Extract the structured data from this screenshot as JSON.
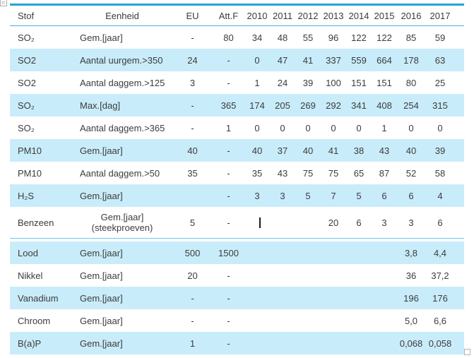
{
  "meta": {
    "background_color": "#ffffff",
    "accent_top_border_color": "#24a4d4",
    "header_underline_color": "#4aacdb",
    "row_shade_color": "#c9ecfa",
    "section_divider_color": "#6fc8ea",
    "text_color": "#3c3c3c"
  },
  "icons": {
    "move_handle": "table-move-handle-icon",
    "resize_handle": "table-resize-handle-icon",
    "text_cursor": "text-caret"
  },
  "table": {
    "columns": [
      "Stof",
      "Eenheid",
      "EU",
      "Att.F",
      "2010",
      "2011",
      "2012",
      "2013",
      "2014",
      "2015",
      "2016",
      "2017"
    ],
    "rows": [
      {
        "stof": "SO₂",
        "eenheid": "Gem.[jaar]",
        "eu": "-",
        "attf": "80",
        "values": [
          "34",
          "48",
          "55",
          "96",
          "122",
          "122",
          "85",
          "59"
        ],
        "shaded": false
      },
      {
        "stof": "SO2",
        "eenheid": "Aantal uurgem.>350",
        "eu": "24",
        "attf": "-",
        "values": [
          "0",
          "47",
          "41",
          "337",
          "559",
          "664",
          "178",
          "63"
        ],
        "shaded": true
      },
      {
        "stof": "SO2",
        "eenheid": "Aantal daggem.>125",
        "eu": "3",
        "attf": "-",
        "values": [
          "1",
          "24",
          "39",
          "100",
          "151",
          "151",
          "80",
          "25"
        ],
        "shaded": false
      },
      {
        "stof": "SO₂",
        "eenheid": "Max.[dag]",
        "eu": "-",
        "attf": "365",
        "values": [
          "174",
          "205",
          "269",
          "292",
          "341",
          "408",
          "254",
          "315"
        ],
        "shaded": true
      },
      {
        "stof": "SO₂",
        "eenheid": "Aantal daggem.>365",
        "eu": "-",
        "attf": "1",
        "values": [
          "0",
          "0",
          "0",
          "0",
          "0",
          "1",
          "0",
          "0"
        ],
        "shaded": false
      },
      {
        "stof": "PM10",
        "eenheid": "Gem.[jaar]",
        "eu": "40",
        "attf": "-",
        "values": [
          "40",
          "37",
          "40",
          "41",
          "38",
          "43",
          "40",
          "39"
        ],
        "shaded": true
      },
      {
        "stof": "PM10",
        "eenheid": "Aantal daggem.>50",
        "eu": "35",
        "attf": "-",
        "values": [
          "35",
          "43",
          "75",
          "75",
          "65",
          "87",
          "52",
          "58"
        ],
        "shaded": false
      },
      {
        "stof": "H₂S",
        "eenheid": "Gem.[jaar]",
        "eu": "",
        "attf": "-",
        "values": [
          "3",
          "3",
          "5",
          "7",
          "5",
          "6",
          "6",
          "4"
        ],
        "shaded": true
      },
      {
        "stof": "Benzeen",
        "eenheid": "Gem.[jaar]",
        "eenheid2": "(steekproeven)",
        "eu": "5",
        "attf": "-",
        "values": [
          "",
          "",
          "",
          "20",
          "6",
          "3",
          "3",
          "6"
        ],
        "shaded": false,
        "tall": true,
        "caret": true
      },
      {
        "stof": "Lood",
        "eenheid": "Gem.[jaar]",
        "eu": "500",
        "attf": "1500",
        "values": [
          "",
          "",
          "",
          "",
          "",
          "",
          "3,8",
          "4,4"
        ],
        "shaded": true,
        "divider_above": true
      },
      {
        "stof": "Nikkel",
        "eenheid": "Gem.[jaar]",
        "eu": "20",
        "attf": "-",
        "values": [
          "",
          "",
          "",
          "",
          "",
          "",
          "36",
          "37,2"
        ],
        "shaded": false
      },
      {
        "stof": "Vanadium",
        "eenheid": "Gem.[jaar]",
        "eu": "-",
        "attf": "-",
        "values": [
          "",
          "",
          "",
          "",
          "",
          "",
          "196",
          "176"
        ],
        "shaded": true
      },
      {
        "stof": "Chroom",
        "eenheid": "Gem.[jaar]",
        "eu": "-",
        "attf": "-",
        "values": [
          "",
          "",
          "",
          "",
          "",
          "",
          "5,0",
          "6,6"
        ],
        "shaded": false
      },
      {
        "stof": "B(a)P",
        "eenheid": "Gem.[jaar]",
        "eu": "1",
        "attf": "-",
        "values": [
          "",
          "",
          "",
          "",
          "",
          "",
          "0,068",
          "0,058"
        ],
        "shaded": true
      }
    ]
  }
}
